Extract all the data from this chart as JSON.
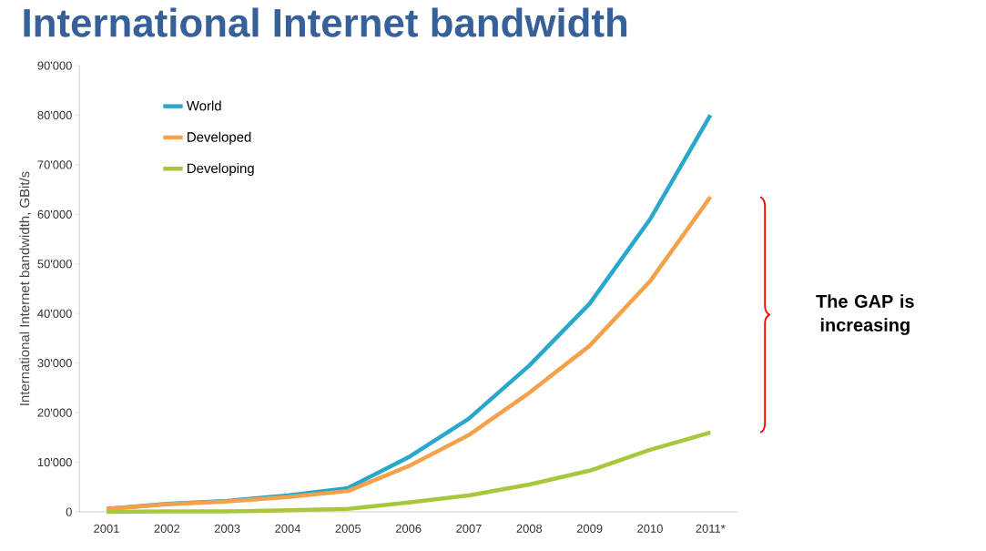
{
  "chart_data": {
    "type": "line",
    "title": "International Internet bandwidth",
    "ylabel": "International Internet bandwidth, GBit/s",
    "categories": [
      "2001",
      "2002",
      "2003",
      "2004",
      "2005",
      "2006",
      "2007",
      "2008",
      "2009",
      "2010",
      "2011*"
    ],
    "series": [
      {
        "name": "World",
        "color": "#2aa7cc",
        "values": [
          600,
          1600,
          2200,
          3300,
          4800,
          11000,
          18800,
          29500,
          42000,
          59000,
          80000
        ]
      },
      {
        "name": "Developed",
        "color": "#f5a04a",
        "values": [
          600,
          1500,
          2100,
          3000,
          4200,
          9200,
          15500,
          24000,
          33500,
          46500,
          63500
        ]
      },
      {
        "name": "Developing",
        "color": "#a8c83c",
        "values": [
          0,
          100,
          100,
          300,
          600,
          1900,
          3300,
          5500,
          8300,
          12500,
          16000
        ]
      }
    ],
    "ylim": [
      0,
      90000
    ],
    "yticks": [
      0,
      {
        "value": 10000,
        "label": "10'000"
      },
      {
        "value": 20000,
        "label": "20'000"
      },
      {
        "value": 30000,
        "label": "30'000"
      },
      {
        "value": 40000,
        "label": "40'000"
      },
      {
        "value": 50000,
        "label": "50'000"
      },
      {
        "value": 60000,
        "label": "60'000"
      },
      {
        "value": 70000,
        "label": "70'000"
      },
      {
        "value": 80000,
        "label": "80'000"
      },
      {
        "value": 90000,
        "label": "90'000"
      }
    ],
    "legend": "top left",
    "grid": false,
    "line_style": "solid",
    "annotations": [
      "The GAP is increasing"
    ]
  }
}
